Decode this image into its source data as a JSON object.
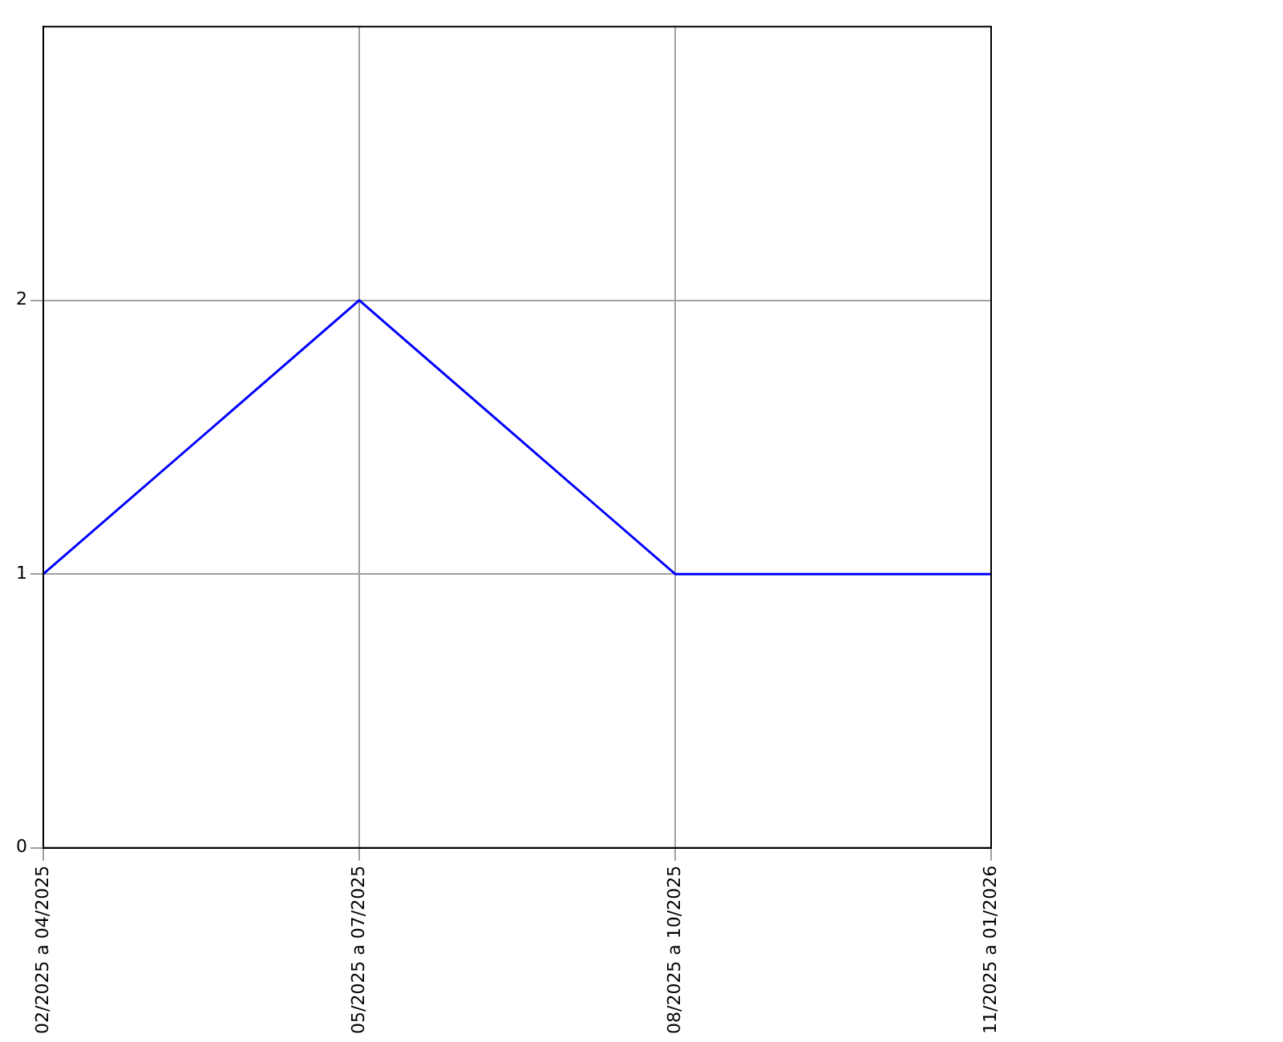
{
  "chart_data": {
    "type": "line",
    "categories": [
      "02/2025 a 04/2025",
      "05/2025 a 07/2025",
      "08/2025 a 10/2025",
      "11/2025 a 01/2026"
    ],
    "series": [
      {
        "color": "#0000ff",
        "values": [
          1,
          2,
          1,
          1
        ]
      }
    ],
    "ylim": [
      0,
      3
    ],
    "yticks": [
      0,
      1,
      2
    ],
    "grid": true,
    "legend": false,
    "marker": "none",
    "line_style": "solid"
  }
}
